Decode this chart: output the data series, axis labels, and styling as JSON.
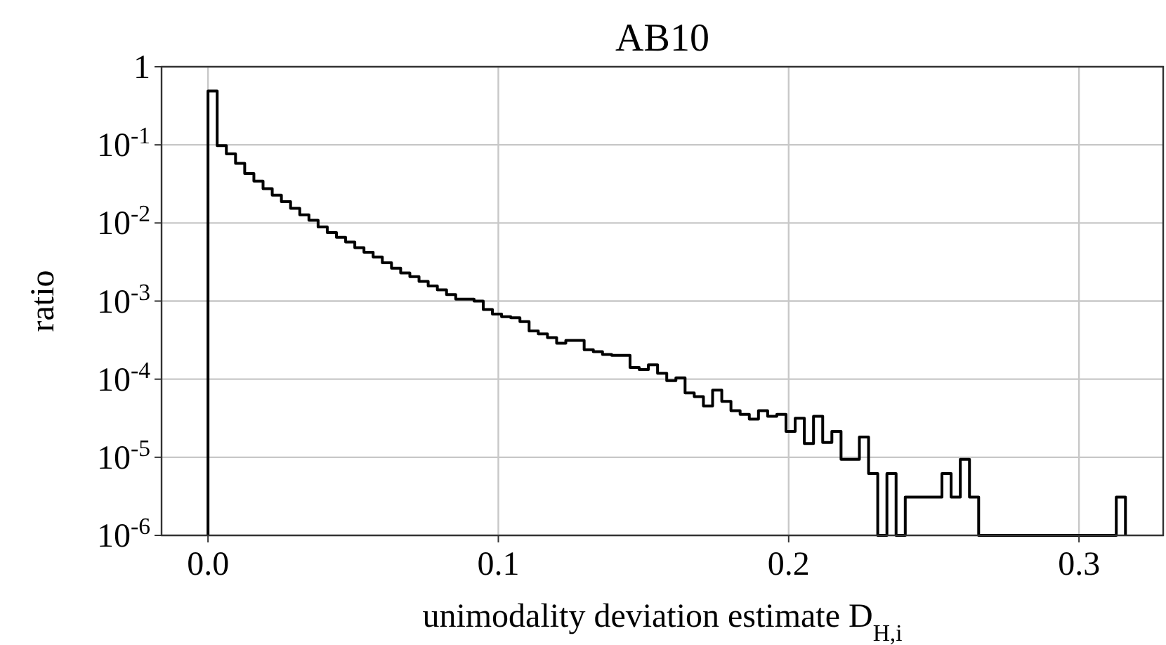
{
  "chart_data": {
    "type": "histogram",
    "title": "AB10",
    "xlabel": "unimodality deviation estimate D$_{H,i}$",
    "ylabel": "ratio",
    "color": "#000000",
    "log": "y",
    "grid": true,
    "xlim": [
      -0.016,
      0.329
    ],
    "ylim": [
      1e-06,
      1
    ],
    "xticks": [
      {
        "value": 0,
        "label": "0.0"
      },
      0.1,
      0.2,
      0.3
    ],
    "yticks": [
      {
        "value": 1e-06,
        "label": "10$^{-6}$"
      },
      {
        "value": 1e-05,
        "label": "10$^{-5}$"
      },
      {
        "value": 0.0001,
        "label": "10$^{-4}$"
      },
      {
        "value": 0.001,
        "label": "10$^{-3}$"
      },
      {
        "value": 0.01,
        "label": "10$^{-2}$"
      },
      {
        "value": 0.1,
        "label": "10$^{-1}$"
      },
      1
    ],
    "bins": [
      0,
      0.00316,
      0.00632,
      0.00948,
      0.01264,
      0.0158,
      0.01896,
      0.02212,
      0.02528,
      0.02844,
      0.0316,
      0.03476,
      0.03792,
      0.04108,
      0.04424,
      0.0474,
      0.05056,
      0.05372,
      0.05688,
      0.06004,
      0.0632,
      0.06636,
      0.06952,
      0.07268,
      0.07584,
      0.079,
      0.08216,
      0.08532,
      0.08848,
      0.09164,
      0.0948,
      0.09796,
      0.10112,
      0.10428,
      0.10744,
      0.1106,
      0.11376,
      0.11692,
      0.12008,
      0.12324,
      0.1264,
      0.12956,
      0.13272,
      0.13588,
      0.13904,
      0.1422,
      0.14536,
      0.14852,
      0.15168,
      0.15484,
      0.158,
      0.16116,
      0.16432,
      0.16748,
      0.17064,
      0.1738,
      0.17696,
      0.18012,
      0.18328,
      0.18644,
      0.1896,
      0.19276,
      0.19592,
      0.19908,
      0.20224,
      0.2054,
      0.20856,
      0.21172,
      0.21488,
      0.21804,
      0.2212,
      0.22436,
      0.22752,
      0.23068,
      0.23384,
      0.237,
      0.24016,
      0.24332,
      0.24648,
      0.24964,
      0.2528,
      0.25596,
      0.25912,
      0.26228,
      0.26544,
      0.2686,
      0.27176,
      0.27492,
      0.27808,
      0.28124,
      0.2844,
      0.28756,
      0.29072,
      0.29388,
      0.29704,
      0.3002,
      0.30336,
      0.30652,
      0.30968,
      0.31284,
      0.316
    ],
    "values": [
      0.49,
      0.098,
      0.0766,
      0.058,
      0.0429,
      0.0344,
      0.0275,
      0.0227,
      0.0187,
      0.0154,
      0.0127,
      0.0108,
      0.00888,
      0.00752,
      0.00655,
      0.0057,
      0.00483,
      0.00421,
      0.00366,
      0.0031,
      0.00263,
      0.00229,
      0.00205,
      0.00179,
      0.00156,
      0.00139,
      0.00121,
      0.00106,
      0.00106,
      0.001,
      0.00078,
      0.00068,
      0.00063,
      0.00061,
      0.000545,
      0.000414,
      0.00038,
      0.00034,
      0.000289,
      0.000314,
      0.000314,
      0.000238,
      0.000225,
      0.000207,
      0.000202,
      0.000202,
      0.000141,
      0.000133,
      0.000153,
      0.000119,
      9.57e-05,
      0.000104,
      6.68e-05,
      5.98e-05,
      4.54e-05,
      7.26e-05,
      5.21e-05,
      3.95e-05,
      3.54e-05,
      3.08e-05,
      3.95e-05,
      3.35e-05,
      3.54e-05,
      2.15e-05,
      3.17e-05,
      1.5e-05,
      3.35e-05,
      1.55e-05,
      2.15e-05,
      9.4e-06,
      9.4e-06,
      1.82e-05,
      6.2e-06,
      null,
      6.2e-06,
      null,
      3.1e-06,
      3.1e-06,
      3.1e-06,
      3.1e-06,
      6.2e-06,
      3.1e-06,
      9.4e-06,
      3.1e-06,
      null,
      null,
      null,
      null,
      null,
      null,
      null,
      null,
      null,
      null,
      null,
      null,
      null,
      null,
      null,
      3.1e-06
    ]
  }
}
